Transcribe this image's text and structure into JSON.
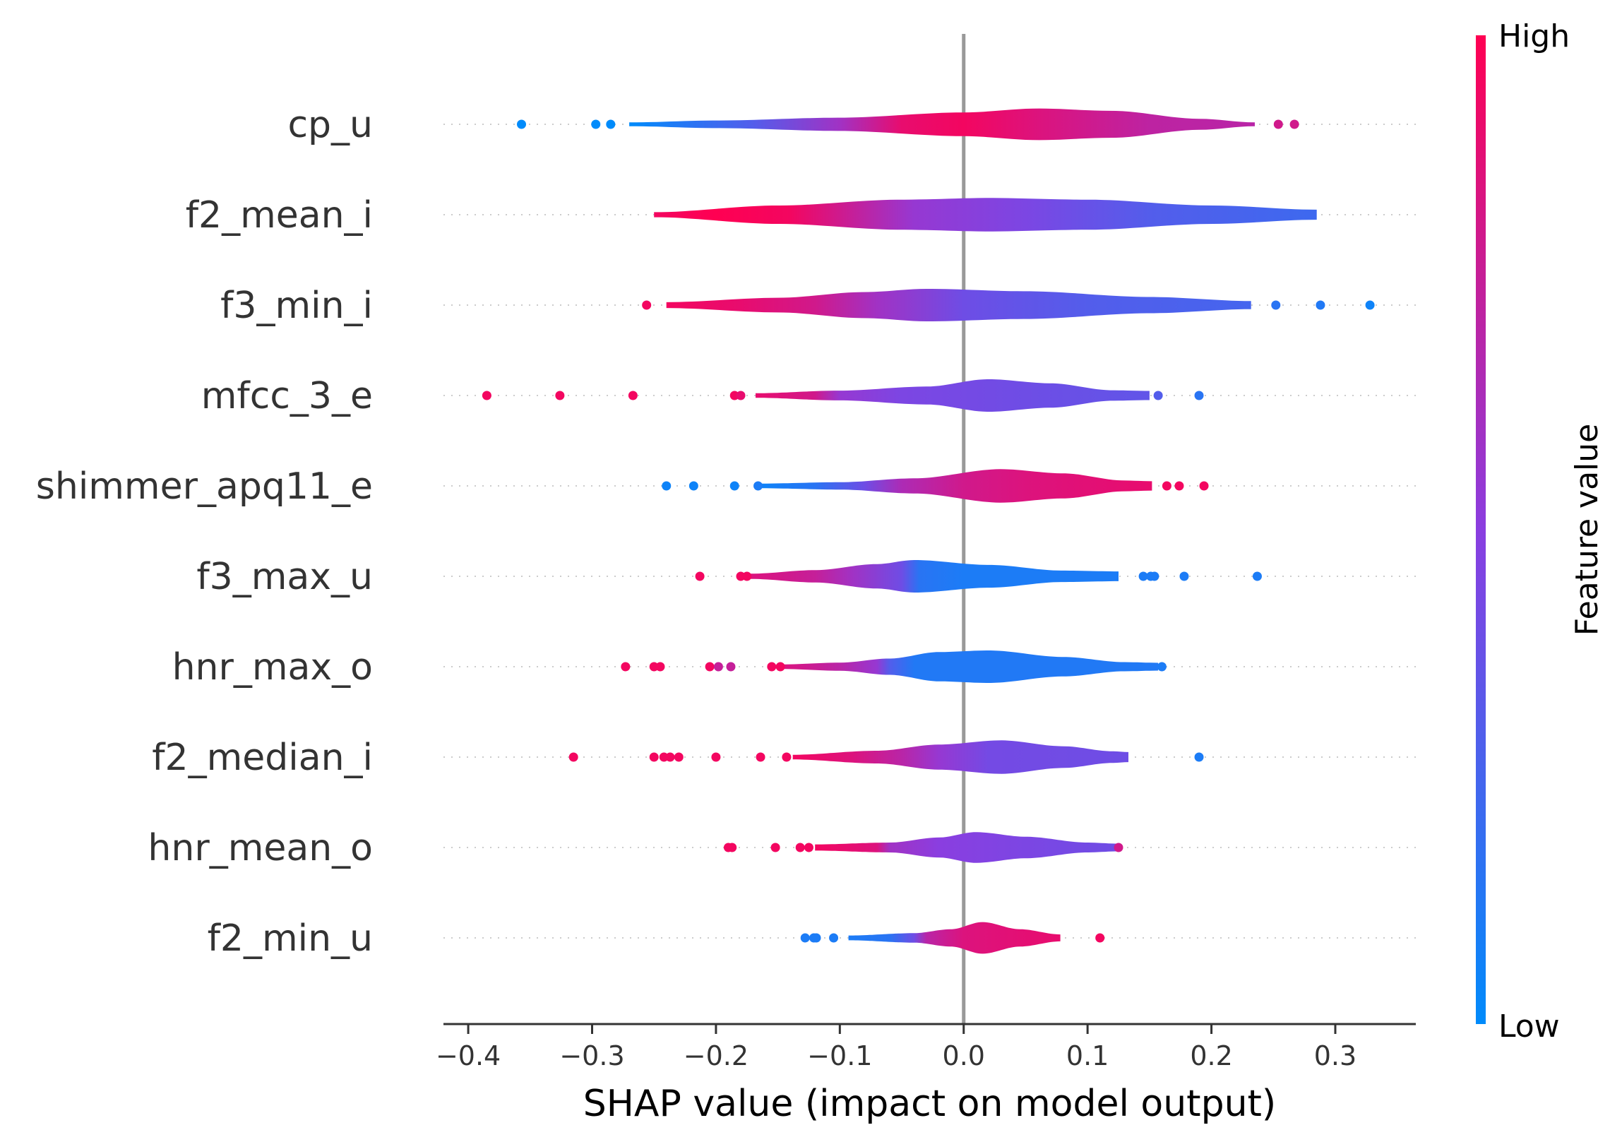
{
  "chart_data": {
    "type": "scatter",
    "subtype": "shap-summary-violin",
    "title": "",
    "xlabel": "SHAP value (impact on model output)",
    "ylabel": "",
    "xlim": [
      -0.42,
      0.365
    ],
    "x_ticks": [
      -0.4,
      -0.3,
      -0.2,
      -0.1,
      0.0,
      0.1,
      0.2,
      0.3
    ],
    "x_tick_labels": [
      "−0.4",
      "−0.3",
      "−0.2",
      "−0.1",
      "0.0",
      "0.1",
      "0.2",
      "0.3"
    ],
    "zero_line": 0.0,
    "grid": false,
    "colorbar": {
      "label": "Feature value",
      "high_label": "High",
      "low_label": "Low",
      "high_color": "#ff0052",
      "mid_color": "#8a3ee0",
      "low_color": "#008bfb"
    },
    "features": [
      {
        "name": "cp_u",
        "body_range": [
          -0.27,
          0.235
        ],
        "body_width": 0.35,
        "width_profile": [
          [
            -0.27,
            0.12
          ],
          [
            -0.2,
            0.24
          ],
          [
            -0.1,
            0.42
          ],
          [
            0.0,
            0.75
          ],
          [
            0.06,
            1.0
          ],
          [
            0.12,
            0.85
          ],
          [
            0.19,
            0.35
          ],
          [
            0.235,
            0.12
          ]
        ],
        "color_profile": [
          [
            -0.27,
            0.0
          ],
          [
            -0.17,
            0.3
          ],
          [
            -0.1,
            0.6
          ],
          [
            -0.05,
            0.9
          ],
          [
            0.0,
            0.95
          ],
          [
            0.06,
            0.85
          ],
          [
            0.15,
            0.72
          ],
          [
            0.235,
            0.7
          ]
        ],
        "outliers": [
          [
            -0.357,
            0.0
          ],
          [
            -0.297,
            0.0
          ],
          [
            -0.285,
            0.0
          ],
          [
            0.254,
            0.8
          ],
          [
            0.267,
            0.8
          ]
        ]
      },
      {
        "name": "f2_mean_i",
        "body_range": [
          -0.25,
          0.285
        ],
        "body_width": 0.37,
        "width_profile": [
          [
            -0.25,
            0.15
          ],
          [
            -0.15,
            0.55
          ],
          [
            -0.05,
            0.9
          ],
          [
            0.02,
            1.0
          ],
          [
            0.1,
            0.9
          ],
          [
            0.2,
            0.55
          ],
          [
            0.285,
            0.3
          ]
        ],
        "color_profile": [
          [
            -0.25,
            0.95
          ],
          [
            -0.2,
            1.0
          ],
          [
            -0.14,
            0.95
          ],
          [
            -0.09,
            0.75
          ],
          [
            -0.04,
            0.55
          ],
          [
            0.05,
            0.45
          ],
          [
            0.15,
            0.3
          ],
          [
            0.285,
            0.22
          ]
        ],
        "outliers": []
      },
      {
        "name": "f3_min_i",
        "body_range": [
          -0.24,
          0.232
        ],
        "body_width": 0.36,
        "width_profile": [
          [
            -0.24,
            0.18
          ],
          [
            -0.15,
            0.45
          ],
          [
            -0.08,
            0.8
          ],
          [
            -0.03,
            1.0
          ],
          [
            0.05,
            0.85
          ],
          [
            0.15,
            0.5
          ],
          [
            0.232,
            0.25
          ]
        ],
        "color_profile": [
          [
            -0.24,
            0.95
          ],
          [
            -0.18,
            0.9
          ],
          [
            -0.12,
            0.8
          ],
          [
            -0.07,
            0.6
          ],
          [
            0.0,
            0.4
          ],
          [
            0.1,
            0.3
          ],
          [
            0.232,
            0.25
          ]
        ],
        "outliers": [
          [
            -0.256,
            0.95
          ],
          [
            0.252,
            0.15
          ],
          [
            0.288,
            0.12
          ],
          [
            0.328,
            0.05
          ]
        ]
      },
      {
        "name": "mfcc_3_e",
        "body_range": [
          -0.168,
          0.15
        ],
        "body_width": 0.36,
        "width_profile": [
          [
            -0.168,
            0.14
          ],
          [
            -0.1,
            0.3
          ],
          [
            -0.03,
            0.55
          ],
          [
            0.02,
            1.0
          ],
          [
            0.07,
            0.75
          ],
          [
            0.12,
            0.32
          ],
          [
            0.15,
            0.28
          ]
        ],
        "color_profile": [
          [
            -0.168,
            0.9
          ],
          [
            -0.12,
            0.8
          ],
          [
            -0.1,
            0.55
          ],
          [
            -0.05,
            0.45
          ],
          [
            0.05,
            0.4
          ],
          [
            0.15,
            0.35
          ]
        ],
        "outliers": [
          [
            -0.385,
            0.95
          ],
          [
            -0.326,
            0.95
          ],
          [
            -0.267,
            0.95
          ],
          [
            -0.185,
            0.95
          ],
          [
            -0.18,
            0.9
          ],
          [
            0.157,
            0.3
          ],
          [
            0.19,
            0.15
          ]
        ]
      },
      {
        "name": "shimmer_apq11_e",
        "body_range": [
          -0.163,
          0.152
        ],
        "body_width": 0.37,
        "width_profile": [
          [
            -0.163,
            0.14
          ],
          [
            -0.1,
            0.22
          ],
          [
            -0.04,
            0.45
          ],
          [
            0.03,
            1.0
          ],
          [
            0.08,
            0.75
          ],
          [
            0.13,
            0.32
          ],
          [
            0.152,
            0.28
          ]
        ],
        "color_profile": [
          [
            -0.163,
            0.05
          ],
          [
            -0.12,
            0.15
          ],
          [
            -0.08,
            0.4
          ],
          [
            -0.05,
            0.65
          ],
          [
            0.0,
            0.8
          ],
          [
            0.05,
            0.85
          ],
          [
            0.152,
            0.9
          ]
        ],
        "outliers": [
          [
            -0.24,
            0.05
          ],
          [
            -0.218,
            0.05
          ],
          [
            -0.185,
            0.05
          ],
          [
            -0.166,
            0.1
          ],
          [
            0.164,
            0.95
          ],
          [
            0.174,
            0.95
          ],
          [
            0.194,
            0.95
          ]
        ]
      },
      {
        "name": "f3_max_u",
        "body_range": [
          -0.172,
          0.125
        ],
        "body_width": 0.36,
        "width_profile": [
          [
            -0.172,
            0.16
          ],
          [
            -0.12,
            0.38
          ],
          [
            -0.07,
            0.75
          ],
          [
            -0.04,
            1.0
          ],
          [
            0.02,
            0.7
          ],
          [
            0.08,
            0.35
          ],
          [
            0.125,
            0.3
          ]
        ],
        "color_profile": [
          [
            -0.172,
            0.85
          ],
          [
            -0.12,
            0.75
          ],
          [
            -0.09,
            0.6
          ],
          [
            -0.05,
            0.4
          ],
          [
            -0.036,
            0.15
          ],
          [
            0.0,
            0.1
          ],
          [
            0.125,
            0.1
          ]
        ],
        "outliers": [
          [
            -0.213,
            0.95
          ],
          [
            -0.18,
            0.95
          ],
          [
            -0.175,
            0.95
          ],
          [
            0.145,
            0.1
          ],
          [
            0.151,
            0.1
          ],
          [
            0.154,
            0.1
          ],
          [
            0.178,
            0.1
          ],
          [
            0.237,
            0.1
          ]
        ]
      },
      {
        "name": "hnr_max_o",
        "body_range": [
          -0.147,
          0.157
        ],
        "body_width": 0.36,
        "width_profile": [
          [
            -0.147,
            0.14
          ],
          [
            -0.1,
            0.25
          ],
          [
            -0.06,
            0.5
          ],
          [
            -0.02,
            0.9
          ],
          [
            0.02,
            1.0
          ],
          [
            0.08,
            0.6
          ],
          [
            0.13,
            0.28
          ],
          [
            0.157,
            0.24
          ]
        ],
        "color_profile": [
          [
            -0.147,
            0.85
          ],
          [
            -0.1,
            0.7
          ],
          [
            -0.07,
            0.55
          ],
          [
            -0.06,
            0.3
          ],
          [
            -0.04,
            0.12
          ],
          [
            0.157,
            0.12
          ]
        ],
        "outliers": [
          [
            -0.273,
            0.95
          ],
          [
            -0.25,
            0.95
          ],
          [
            -0.245,
            0.95
          ],
          [
            -0.205,
            0.95
          ],
          [
            -0.198,
            0.75
          ],
          [
            -0.188,
            0.75
          ],
          [
            -0.155,
            0.95
          ],
          [
            -0.148,
            0.95
          ],
          [
            0.16,
            0.1
          ]
        ]
      },
      {
        "name": "f2_median_i",
        "body_range": [
          -0.138,
          0.133
        ],
        "body_width": 0.37,
        "width_profile": [
          [
            -0.138,
            0.14
          ],
          [
            -0.07,
            0.38
          ],
          [
            -0.02,
            0.75
          ],
          [
            0.03,
            1.0
          ],
          [
            0.08,
            0.65
          ],
          [
            0.12,
            0.35
          ],
          [
            0.133,
            0.3
          ]
        ],
        "color_profile": [
          [
            -0.138,
            0.95
          ],
          [
            -0.09,
            0.85
          ],
          [
            -0.05,
            0.7
          ],
          [
            -0.02,
            0.55
          ],
          [
            0.02,
            0.42
          ],
          [
            0.133,
            0.4
          ]
        ],
        "outliers": [
          [
            -0.315,
            0.95
          ],
          [
            -0.25,
            0.95
          ],
          [
            -0.242,
            0.95
          ],
          [
            -0.237,
            0.95
          ],
          [
            -0.23,
            0.95
          ],
          [
            -0.2,
            0.95
          ],
          [
            -0.164,
            0.95
          ],
          [
            -0.143,
            0.95
          ],
          [
            0.19,
            0.1
          ]
        ]
      },
      {
        "name": "hnr_mean_o",
        "body_range": [
          -0.12,
          0.125
        ],
        "body_width": 0.34,
        "width_profile": [
          [
            -0.12,
            0.2
          ],
          [
            -0.06,
            0.32
          ],
          [
            -0.02,
            0.65
          ],
          [
            0.01,
            1.0
          ],
          [
            0.05,
            0.7
          ],
          [
            0.1,
            0.32
          ],
          [
            0.125,
            0.25
          ]
        ],
        "color_profile": [
          [
            -0.12,
            0.95
          ],
          [
            -0.07,
            0.85
          ],
          [
            -0.06,
            0.6
          ],
          [
            -0.02,
            0.5
          ],
          [
            0.05,
            0.45
          ],
          [
            0.125,
            0.4
          ]
        ],
        "outliers": [
          [
            -0.19,
            0.95
          ],
          [
            -0.187,
            0.95
          ],
          [
            -0.152,
            0.95
          ],
          [
            -0.132,
            0.95
          ],
          [
            -0.125,
            0.95
          ],
          [
            0.125,
            0.8
          ]
        ]
      },
      {
        "name": "f2_min_u",
        "body_range": [
          -0.093,
          0.078
        ],
        "body_width": 0.35,
        "width_profile": [
          [
            -0.093,
            0.15
          ],
          [
            -0.04,
            0.3
          ],
          [
            -0.01,
            0.55
          ],
          [
            0.015,
            1.0
          ],
          [
            0.045,
            0.55
          ],
          [
            0.078,
            0.22
          ]
        ],
        "color_profile": [
          [
            -0.093,
            0.1
          ],
          [
            -0.06,
            0.15
          ],
          [
            -0.04,
            0.4
          ],
          [
            -0.03,
            0.7
          ],
          [
            0.0,
            0.85
          ],
          [
            0.078,
            0.9
          ]
        ],
        "outliers": [
          [
            -0.128,
            0.1
          ],
          [
            -0.121,
            0.1
          ],
          [
            -0.119,
            0.1
          ],
          [
            -0.105,
            0.1
          ],
          [
            0.11,
            0.95
          ]
        ]
      }
    ]
  }
}
